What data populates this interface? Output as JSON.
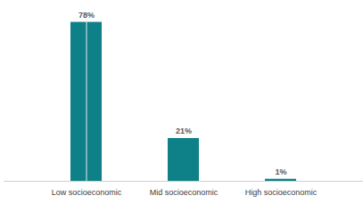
{
  "chart_data": {
    "type": "bar",
    "categories": [
      "Low socioeconomic",
      "Mid socioeconomic",
      "High socioeconomic"
    ],
    "values": [
      78,
      21,
      1
    ],
    "value_labels": [
      "78%",
      "21%",
      "1%"
    ],
    "data_labels": true,
    "color": "#0e8088",
    "ylim": [
      0,
      80
    ],
    "tick_labels": "x",
    "grid": false
  }
}
